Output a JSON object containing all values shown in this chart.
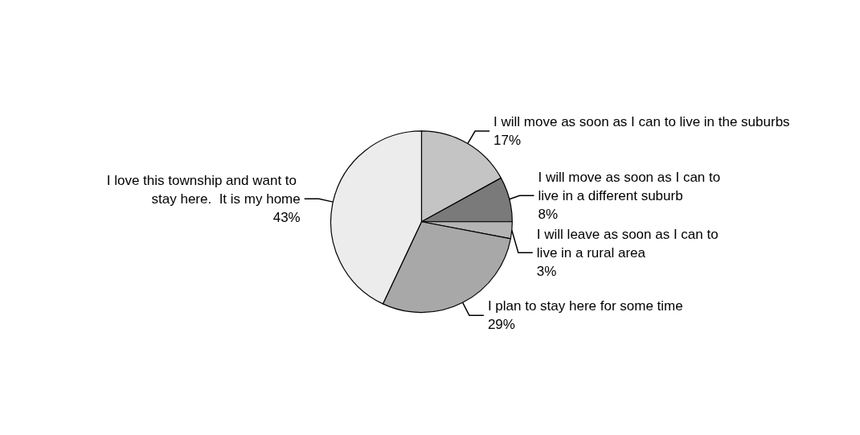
{
  "chart_data": {
    "type": "pie",
    "categories": [
      "I will move as soon as I can to live in the suburbs",
      "I will move as soon as I can to live in a different suburb",
      "I will leave as soon as I can to live in a rural area",
      "I plan to stay here for some time",
      "I love this township and want to stay here.  It is my home"
    ],
    "values": [
      17,
      8,
      3,
      29,
      43
    ],
    "value_labels": [
      "17%",
      "8%",
      "3%",
      "29%",
      "43%"
    ],
    "colors": [
      "#c4c4c4",
      "#7a7a7a",
      "#b4b4b4",
      "#a8a8a8",
      "#ececec"
    ]
  }
}
